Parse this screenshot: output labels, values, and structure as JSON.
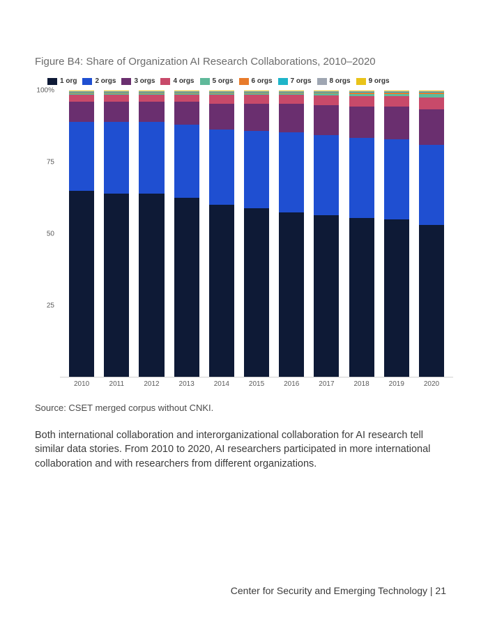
{
  "figure": {
    "title": "Figure B4: Share of Organization AI Research Collaborations, 2010–2020",
    "type": "stacked-bar-100pct",
    "legend": [
      {
        "label": "1 org",
        "color": "#0e1a36"
      },
      {
        "label": "2 orgs",
        "color": "#1f4fd1"
      },
      {
        "label": "3 orgs",
        "color": "#6a2f6f"
      },
      {
        "label": "4 orgs",
        "color": "#c84a6a"
      },
      {
        "label": "5 orgs",
        "color": "#5fb99a"
      },
      {
        "label": "6 orgs",
        "color": "#e87b2b"
      },
      {
        "label": "7 orgs",
        "color": "#1fb5c9"
      },
      {
        "label": "8 orgs",
        "color": "#9fa6b2"
      },
      {
        "label": "9 orgs",
        "color": "#e9c31a"
      }
    ],
    "y_axis": {
      "ticks": [
        {
          "pos": 100,
          "label": "100%"
        },
        {
          "pos": 75,
          "label": "75"
        },
        {
          "pos": 50,
          "label": "50"
        },
        {
          "pos": 25,
          "label": "25"
        }
      ],
      "min": 0,
      "max": 100
    },
    "categories": [
      "2010",
      "2011",
      "2012",
      "2013",
      "2014",
      "2015",
      "2016",
      "2017",
      "2018",
      "2019",
      "2020"
    ],
    "series_colors": [
      "#0e1a36",
      "#1f4fd1",
      "#6a2f6f",
      "#c84a6a",
      "#5fb99a",
      "#e87b2b",
      "#1fb5c9",
      "#9fa6b2",
      "#e9c31a"
    ],
    "data": [
      [
        65,
        24,
        7,
        2.5,
        0.6,
        0.3,
        0.2,
        0.2,
        0.2
      ],
      [
        64,
        25,
        7,
        2.5,
        0.6,
        0.3,
        0.2,
        0.2,
        0.2
      ],
      [
        64,
        25,
        7,
        2.5,
        0.6,
        0.3,
        0.2,
        0.2,
        0.2
      ],
      [
        62.5,
        25.5,
        8,
        2.5,
        0.6,
        0.3,
        0.2,
        0.2,
        0.2
      ],
      [
        60,
        26.5,
        9,
        3,
        0.6,
        0.3,
        0.2,
        0.2,
        0.2
      ],
      [
        59,
        27,
        9.5,
        3,
        0.6,
        0.3,
        0.2,
        0.2,
        0.2
      ],
      [
        57.5,
        28,
        10,
        3,
        0.6,
        0.3,
        0.2,
        0.2,
        0.2
      ],
      [
        56.5,
        28,
        10.5,
        3.2,
        0.8,
        0.4,
        0.2,
        0.2,
        0.2
      ],
      [
        55.5,
        28,
        11,
        3.5,
        0.9,
        0.4,
        0.3,
        0.2,
        0.2
      ],
      [
        55,
        28,
        11.5,
        3.5,
        0.9,
        0.4,
        0.3,
        0.2,
        0.2
      ],
      [
        53,
        28,
        12.5,
        4,
        1.2,
        0.5,
        0.3,
        0.3,
        0.2
      ]
    ],
    "background_color": "#ffffff",
    "bar_width_pct": 72,
    "label_fontsize": 10
  },
  "source_text": "Source: CSET merged corpus without CNKI.",
  "body_paragraph": "Both international collaboration and interorganizational collaboration for AI research tell similar data stories. From 2010 to 2020, AI researchers participated in more international collaboration and with researchers from different organizations.",
  "footer_text": "Center for Security and Emerging Technology | 21"
}
